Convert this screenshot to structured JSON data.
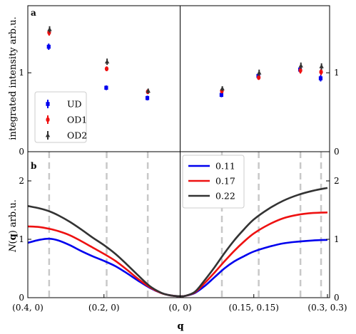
{
  "chart_data": [
    {
      "panel": "a",
      "type": "scatter",
      "ylabel": "integrated intensity arb.u.",
      "ylim": [
        0,
        1.85
      ],
      "yticks": [
        0,
        1
      ],
      "legend_position": "bottom-left",
      "x_positions": [
        {
          "q": 0.344,
          "side": "left"
        },
        {
          "q": 0.193,
          "side": "left"
        },
        {
          "q": 0.085,
          "side": "left"
        },
        {
          "q": 0.085,
          "side": "right"
        },
        {
          "q": 0.16,
          "side": "right"
        },
        {
          "q": 0.245,
          "side": "right"
        },
        {
          "q": 0.287,
          "side": "right"
        }
      ],
      "series": [
        {
          "name": "UD",
          "color": "#0000ee",
          "values": [
            1.33,
            0.81,
            0.68,
            0.72,
            0.96,
            1.04,
            0.93
          ],
          "errors": [
            0.04,
            0.03,
            0.03,
            0.03,
            0.03,
            0.04,
            0.04
          ]
        },
        {
          "name": "OD1",
          "color": "#ee1111",
          "values": [
            1.51,
            1.05,
            0.76,
            0.77,
            0.94,
            1.03,
            1.01
          ],
          "errors": [
            0.04,
            0.03,
            0.03,
            0.03,
            0.03,
            0.04,
            0.04
          ]
        },
        {
          "name": "OD2",
          "color": "#333333",
          "values": [
            1.55,
            1.14,
            0.77,
            0.8,
            1.0,
            1.09,
            1.08
          ],
          "errors": [
            0.04,
            0.04,
            0.03,
            0.03,
            0.04,
            0.04,
            0.04
          ]
        }
      ]
    },
    {
      "panel": "b",
      "type": "line",
      "xlabel": "q",
      "ylabel": "N(q) arb.u.",
      "ylim": [
        0,
        2.5
      ],
      "yticks": [
        0,
        1,
        2
      ],
      "xticks": [
        "(0.4, 0)",
        "(0.2, 0)",
        "(0, 0)",
        "(0.15, 0.15)",
        "(0.3, 0.3)"
      ],
      "legend_position": "top-center",
      "dashed_lines_q": [
        0.344,
        0.193,
        0.085,
        0.085,
        0.16,
        0.245,
        0.287
      ],
      "series": [
        {
          "name": "0.11",
          "color": "#0000ee",
          "x": [
            -0.4,
            -0.37,
            -0.344,
            -0.32,
            -0.29,
            -0.26,
            -0.23,
            -0.2,
            -0.17,
            -0.14,
            -0.11,
            -0.08,
            -0.05,
            -0.03,
            -0.015,
            0,
            0.01,
            0.03,
            0.05,
            0.07,
            0.09,
            0.11,
            0.13,
            0.15,
            0.18,
            0.21,
            0.24,
            0.27,
            0.3
          ],
          "y": [
            0.94,
            0.99,
            1.01,
            0.98,
            0.9,
            0.8,
            0.71,
            0.63,
            0.54,
            0.42,
            0.29,
            0.17,
            0.08,
            0.045,
            0.03,
            0.025,
            0.03,
            0.08,
            0.2,
            0.35,
            0.5,
            0.62,
            0.71,
            0.79,
            0.87,
            0.93,
            0.96,
            0.98,
            0.99
          ]
        },
        {
          "name": "0.17",
          "color": "#ee1111",
          "x": [
            -0.4,
            -0.37,
            -0.344,
            -0.32,
            -0.29,
            -0.26,
            -0.23,
            -0.2,
            -0.17,
            -0.14,
            -0.11,
            -0.08,
            -0.05,
            -0.03,
            -0.015,
            0,
            0.01,
            0.03,
            0.05,
            0.07,
            0.09,
            0.11,
            0.13,
            0.15,
            0.18,
            0.21,
            0.24,
            0.27,
            0.3
          ],
          "y": [
            1.22,
            1.21,
            1.18,
            1.14,
            1.07,
            0.97,
            0.86,
            0.75,
            0.63,
            0.48,
            0.32,
            0.18,
            0.08,
            0.045,
            0.03,
            0.025,
            0.03,
            0.09,
            0.25,
            0.43,
            0.62,
            0.8,
            0.96,
            1.1,
            1.25,
            1.36,
            1.42,
            1.45,
            1.46
          ]
        },
        {
          "name": "0.22",
          "color": "#333333",
          "x": [
            -0.4,
            -0.37,
            -0.344,
            -0.32,
            -0.29,
            -0.26,
            -0.23,
            -0.2,
            -0.17,
            -0.14,
            -0.11,
            -0.08,
            -0.05,
            -0.03,
            -0.015,
            0,
            0.01,
            0.03,
            0.05,
            0.07,
            0.09,
            0.11,
            0.13,
            0.15,
            0.18,
            0.21,
            0.24,
            0.27,
            0.3
          ],
          "y": [
            1.57,
            1.53,
            1.48,
            1.41,
            1.3,
            1.17,
            1.03,
            0.9,
            0.75,
            0.57,
            0.38,
            0.2,
            0.085,
            0.045,
            0.03,
            0.025,
            0.03,
            0.1,
            0.3,
            0.52,
            0.76,
            0.98,
            1.17,
            1.34,
            1.52,
            1.66,
            1.76,
            1.83,
            1.88
          ]
        }
      ]
    }
  ]
}
